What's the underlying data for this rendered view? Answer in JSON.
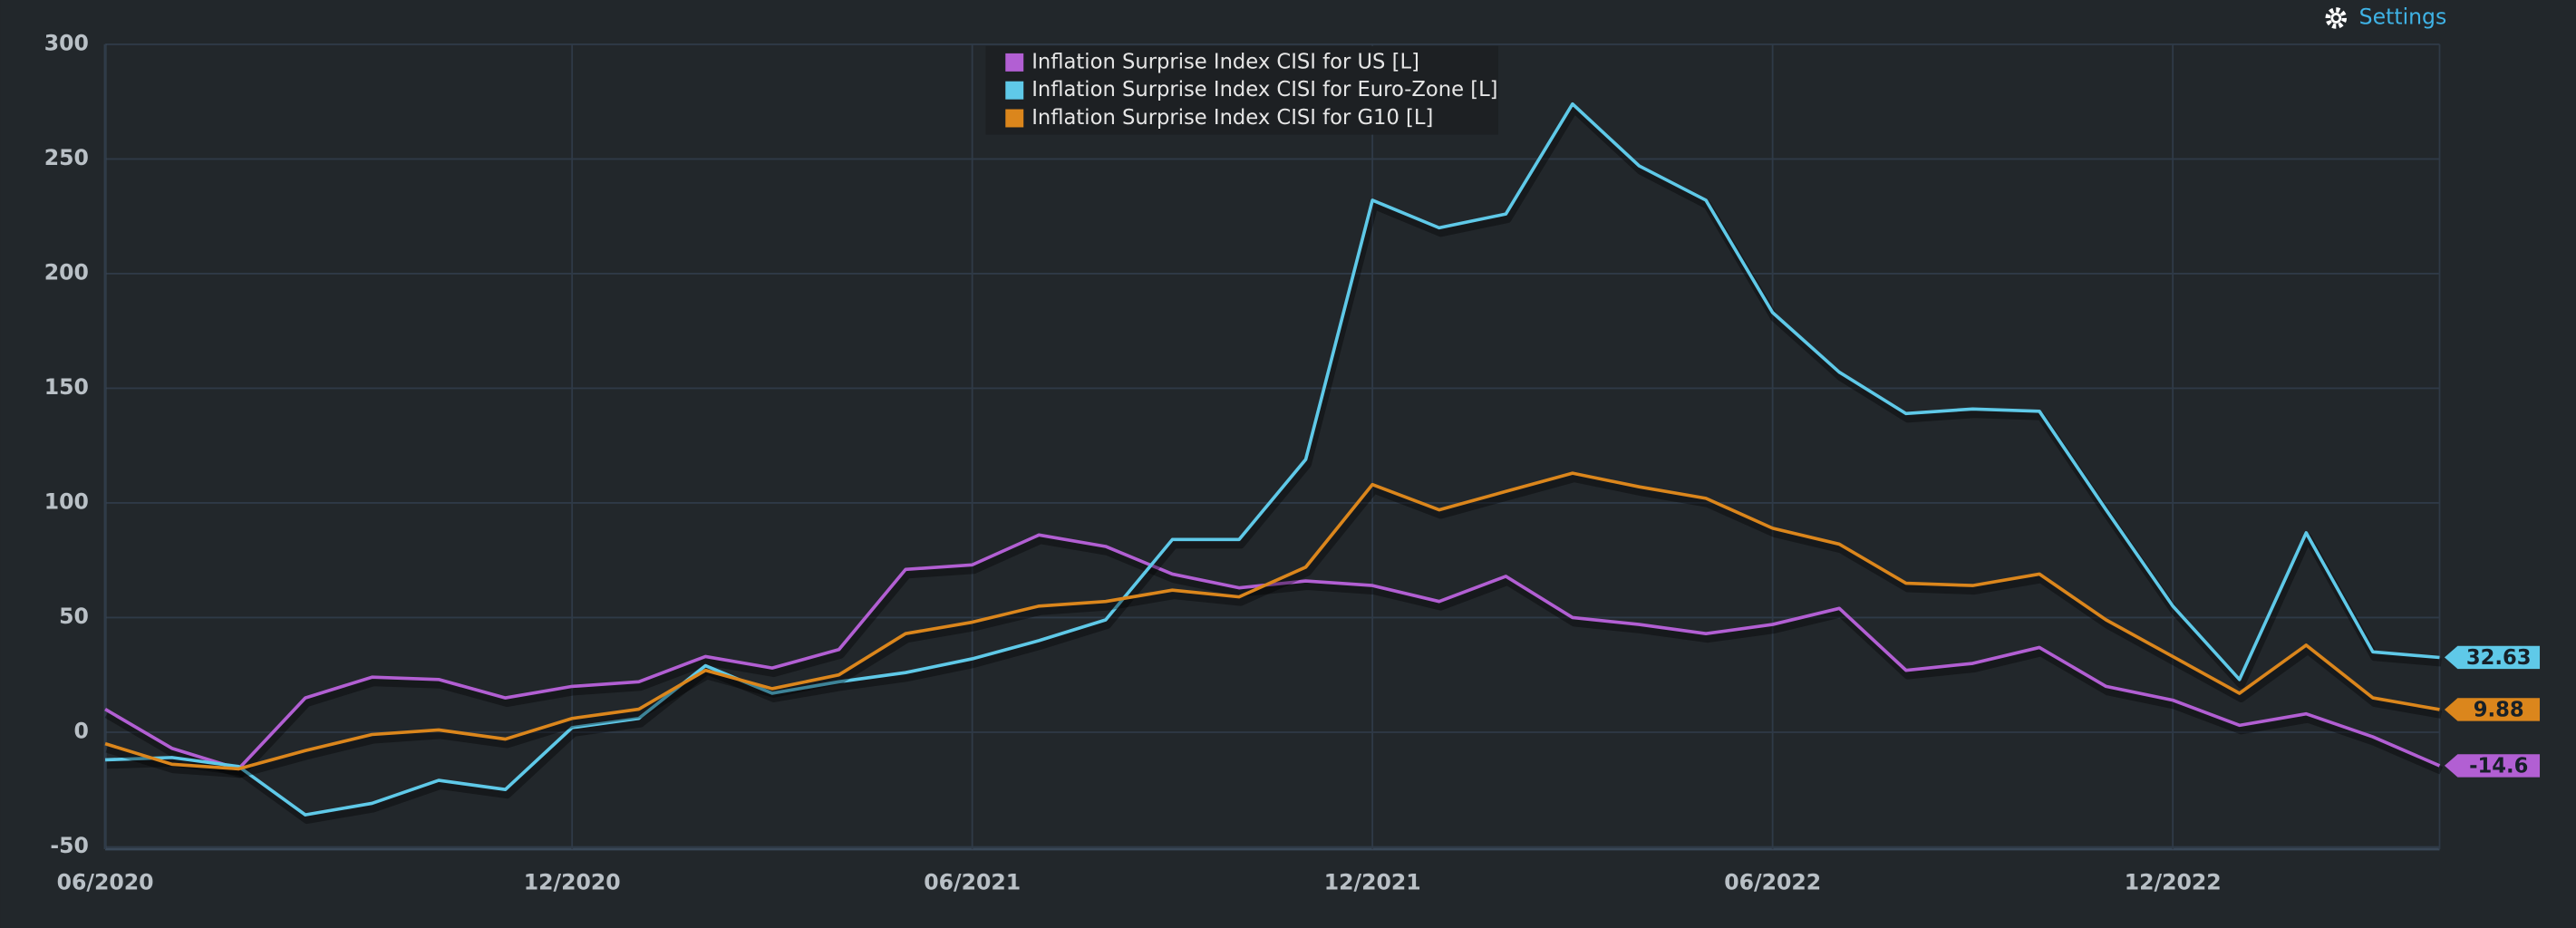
{
  "toolbar": {
    "settings": "Settings"
  },
  "chart_data": {
    "type": "line",
    "x": [
      "06/2020",
      null,
      null,
      null,
      null,
      null,
      null,
      "12/2020",
      null,
      null,
      null,
      null,
      null,
      "06/2021",
      null,
      null,
      null,
      null,
      null,
      "12/2021",
      null,
      null,
      null,
      null,
      null,
      "06/2022",
      null,
      null,
      null,
      null,
      null,
      "12/2022",
      null,
      null,
      null,
      null
    ],
    "series": [
      {
        "name": "Inflation Surprise Index CISI for US [L]",
        "color": "#b25fd3",
        "values": [
          10,
          -7,
          -16,
          15,
          24,
          23,
          15,
          20,
          22,
          33,
          28,
          36,
          71,
          73,
          86,
          81,
          69,
          63,
          66,
          64,
          57,
          68,
          50,
          47,
          43,
          47,
          54,
          27,
          30,
          37,
          20,
          14,
          3,
          8,
          -2,
          -14.6
        ]
      },
      {
        "name": "Inflation Surprise Index CISI for Euro-Zone [L]",
        "color": "#5fc9e8",
        "values": [
          -12,
          -11,
          -15,
          -36,
          -31,
          -21,
          -25,
          2,
          6,
          29,
          17,
          22,
          26,
          32,
          40,
          49,
          84,
          84,
          119,
          232,
          220,
          226,
          274,
          247,
          232,
          183,
          157,
          139,
          141,
          140,
          97,
          55,
          23,
          87,
          35,
          32.63
        ]
      },
      {
        "name": "Inflation Surprise Index CISI for G10 [L]",
        "color": "#db861c",
        "values": [
          -5,
          -14,
          -16,
          -8,
          -1,
          1,
          -3,
          6,
          10,
          27,
          19,
          25,
          43,
          48,
          55,
          57,
          62,
          59,
          72,
          108,
          97,
          105,
          113,
          107,
          102,
          89,
          82,
          65,
          64,
          69,
          49,
          33,
          17,
          38,
          15,
          9.88
        ]
      }
    ],
    "ylim": [
      -51,
      300
    ],
    "yticks": [
      -50,
      0,
      50,
      100,
      150,
      200,
      250,
      300
    ],
    "grid": true
  }
}
